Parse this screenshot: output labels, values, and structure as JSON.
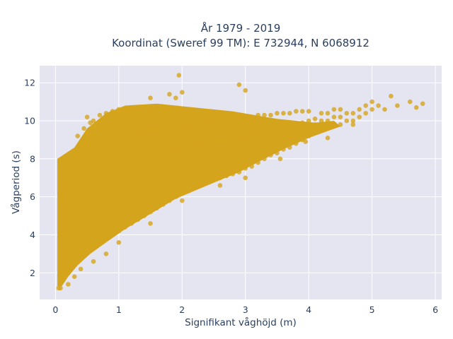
{
  "chart_data": {
    "type": "scatter",
    "title_line1": "År 1979 - 2019",
    "title_line2": "Koordinat (Sweref 99 TM): E 732944, N 6068912",
    "xlabel": "Signifikant våghöjd (m)",
    "ylabel": "Vågperiod (s)",
    "xlim": [
      -0.25,
      6.1
    ],
    "ylim": [
      0.6,
      12.9
    ],
    "x_ticks": [
      0,
      1,
      2,
      3,
      4,
      5,
      6
    ],
    "y_ticks": [
      2,
      4,
      6,
      8,
      10,
      12
    ],
    "grid": true,
    "legend": "none",
    "colors": {
      "marker": "#D4A41C",
      "plot_bg": "#E5E5F2",
      "grid": "#ffffff"
    },
    "series": [
      {
        "points": [
          [
            0.1,
            1.9
          ],
          [
            0.1,
            2.4
          ],
          [
            0.1,
            3.1
          ],
          [
            0.1,
            4.0
          ],
          [
            0.1,
            5.1
          ],
          [
            0.1,
            6.2
          ],
          [
            0.08,
            1.2
          ],
          [
            0.12,
            1.6
          ],
          [
            0.15,
            2.0
          ],
          [
            0.15,
            3.0
          ],
          [
            0.15,
            4.2
          ],
          [
            0.15,
            5.5
          ],
          [
            0.15,
            6.6
          ],
          [
            0.2,
            2.2
          ],
          [
            0.2,
            3.4
          ],
          [
            0.2,
            4.6
          ],
          [
            0.2,
            5.8
          ],
          [
            0.2,
            7.0
          ],
          [
            0.25,
            2.4
          ],
          [
            0.25,
            3.6
          ],
          [
            0.25,
            5.0
          ],
          [
            0.25,
            6.4
          ],
          [
            0.25,
            7.4
          ],
          [
            0.3,
            2.6
          ],
          [
            0.3,
            3.8
          ],
          [
            0.3,
            5.2
          ],
          [
            0.3,
            6.6
          ],
          [
            0.3,
            7.8
          ],
          [
            0.35,
            2.8
          ],
          [
            0.35,
            4.0
          ],
          [
            0.35,
            5.6
          ],
          [
            0.35,
            7.0
          ],
          [
            0.35,
            8.2
          ],
          [
            0.4,
            3.0
          ],
          [
            0.4,
            4.4
          ],
          [
            0.4,
            6.0
          ],
          [
            0.4,
            7.4
          ],
          [
            0.4,
            8.6
          ],
          [
            0.5,
            3.2
          ],
          [
            0.5,
            4.6
          ],
          [
            0.5,
            6.2
          ],
          [
            0.5,
            7.6
          ],
          [
            0.5,
            8.8
          ],
          [
            0.5,
            9.4
          ],
          [
            0.6,
            3.4
          ],
          [
            0.6,
            5.0
          ],
          [
            0.6,
            6.6
          ],
          [
            0.6,
            8.0
          ],
          [
            0.6,
            9.2
          ],
          [
            0.6,
            10.0
          ],
          [
            0.7,
            3.6
          ],
          [
            0.7,
            5.2
          ],
          [
            0.7,
            6.8
          ],
          [
            0.7,
            8.2
          ],
          [
            0.7,
            9.4
          ],
          [
            0.7,
            10.3
          ],
          [
            0.8,
            3.8
          ],
          [
            0.8,
            5.4
          ],
          [
            0.8,
            7.0
          ],
          [
            0.8,
            8.4
          ],
          [
            0.8,
            9.6
          ],
          [
            0.8,
            10.4
          ],
          [
            0.9,
            4.0
          ],
          [
            0.9,
            5.6
          ],
          [
            0.9,
            7.2
          ],
          [
            0.9,
            8.6
          ],
          [
            0.9,
            9.8
          ],
          [
            0.9,
            10.5
          ],
          [
            1.0,
            4.2
          ],
          [
            1.0,
            5.8
          ],
          [
            1.0,
            7.4
          ],
          [
            1.0,
            8.8
          ],
          [
            1.0,
            9.9
          ],
          [
            1.0,
            10.6
          ],
          [
            1.1,
            4.4
          ],
          [
            1.1,
            6.0
          ],
          [
            1.1,
            7.6
          ],
          [
            1.1,
            9.0
          ],
          [
            1.1,
            10.0
          ],
          [
            1.1,
            10.5
          ],
          [
            1.2,
            4.6
          ],
          [
            1.2,
            6.2
          ],
          [
            1.2,
            7.8
          ],
          [
            1.2,
            9.2
          ],
          [
            1.2,
            10.1
          ],
          [
            1.2,
            10.7
          ],
          [
            1.3,
            4.8
          ],
          [
            1.3,
            6.4
          ],
          [
            1.3,
            8.0
          ],
          [
            1.3,
            9.3
          ],
          [
            1.3,
            10.2
          ],
          [
            1.4,
            5.0
          ],
          [
            1.4,
            6.6
          ],
          [
            1.4,
            8.1
          ],
          [
            1.4,
            9.4
          ],
          [
            1.4,
            10.3
          ],
          [
            1.5,
            5.2
          ],
          [
            1.5,
            6.8
          ],
          [
            1.5,
            8.2
          ],
          [
            1.5,
            9.5
          ],
          [
            1.5,
            10.4
          ],
          [
            1.6,
            5.4
          ],
          [
            1.6,
            7.0
          ],
          [
            1.6,
            8.3
          ],
          [
            1.6,
            9.6
          ],
          [
            1.6,
            10.5
          ],
          [
            1.7,
            5.6
          ],
          [
            1.7,
            7.1
          ],
          [
            1.7,
            8.4
          ],
          [
            1.7,
            9.6
          ],
          [
            1.7,
            10.5
          ],
          [
            1.8,
            5.8
          ],
          [
            1.8,
            7.2
          ],
          [
            1.8,
            8.5
          ],
          [
            1.8,
            9.7
          ],
          [
            1.8,
            10.6
          ],
          [
            1.9,
            6.0
          ],
          [
            1.9,
            7.3
          ],
          [
            1.9,
            8.6
          ],
          [
            1.9,
            9.8
          ],
          [
            2.0,
            6.2
          ],
          [
            2.0,
            7.4
          ],
          [
            2.0,
            8.6
          ],
          [
            2.0,
            9.8
          ],
          [
            2.0,
            10.6
          ],
          [
            2.1,
            6.3
          ],
          [
            2.1,
            7.5
          ],
          [
            2.1,
            8.7
          ],
          [
            2.1,
            9.8
          ],
          [
            2.2,
            6.5
          ],
          [
            2.2,
            7.6
          ],
          [
            2.2,
            8.7
          ],
          [
            2.2,
            9.8
          ],
          [
            2.3,
            6.6
          ],
          [
            2.3,
            7.7
          ],
          [
            2.3,
            8.8
          ],
          [
            2.3,
            9.9
          ],
          [
            2.4,
            6.8
          ],
          [
            2.4,
            7.8
          ],
          [
            2.4,
            8.8
          ],
          [
            2.4,
            9.9
          ],
          [
            2.5,
            6.9
          ],
          [
            2.5,
            7.9
          ],
          [
            2.5,
            8.9
          ],
          [
            2.5,
            9.9
          ],
          [
            2.6,
            7.0
          ],
          [
            2.6,
            8.0
          ],
          [
            2.6,
            9.0
          ],
          [
            2.6,
            10.0
          ],
          [
            2.7,
            7.1
          ],
          [
            2.7,
            8.1
          ],
          [
            2.7,
            9.0
          ],
          [
            2.7,
            10.0
          ],
          [
            2.8,
            7.2
          ],
          [
            2.8,
            8.2
          ],
          [
            2.8,
            9.1
          ],
          [
            2.8,
            10.1
          ],
          [
            2.9,
            7.3
          ],
          [
            2.9,
            8.2
          ],
          [
            2.9,
            9.1
          ],
          [
            2.9,
            10.1
          ],
          [
            3.0,
            7.5
          ],
          [
            3.0,
            8.3
          ],
          [
            3.0,
            9.2
          ],
          [
            3.0,
            10.2
          ],
          [
            3.1,
            7.6
          ],
          [
            3.1,
            8.4
          ],
          [
            3.1,
            9.3
          ],
          [
            3.1,
            10.2
          ],
          [
            3.2,
            7.8
          ],
          [
            3.2,
            8.5
          ],
          [
            3.2,
            9.3
          ],
          [
            3.2,
            10.3
          ],
          [
            3.3,
            8.0
          ],
          [
            3.3,
            8.6
          ],
          [
            3.3,
            9.4
          ],
          [
            3.3,
            10.3
          ],
          [
            3.4,
            8.2
          ],
          [
            3.4,
            8.7
          ],
          [
            3.4,
            9.4
          ],
          [
            3.4,
            10.3
          ],
          [
            3.5,
            8.3
          ],
          [
            3.5,
            8.8
          ],
          [
            3.5,
            9.5
          ],
          [
            3.5,
            10.4
          ],
          [
            3.6,
            8.5
          ],
          [
            3.6,
            9.0
          ],
          [
            3.6,
            9.6
          ],
          [
            3.6,
            10.4
          ],
          [
            3.7,
            8.6
          ],
          [
            3.7,
            9.1
          ],
          [
            3.7,
            9.7
          ],
          [
            3.7,
            10.4
          ],
          [
            3.8,
            8.8
          ],
          [
            3.8,
            9.2
          ],
          [
            3.8,
            9.8
          ],
          [
            3.8,
            10.5
          ],
          [
            3.9,
            9.0
          ],
          [
            3.9,
            9.4
          ],
          [
            3.9,
            9.9
          ],
          [
            3.9,
            10.5
          ],
          [
            4.0,
            9.2
          ],
          [
            4.0,
            9.6
          ],
          [
            4.0,
            10.0
          ],
          [
            4.0,
            10.5
          ],
          [
            4.1,
            9.4
          ],
          [
            4.1,
            9.8
          ],
          [
            4.1,
            10.1
          ],
          [
            4.2,
            9.6
          ],
          [
            4.2,
            10.0
          ],
          [
            4.2,
            10.4
          ],
          [
            4.3,
            9.6
          ],
          [
            4.3,
            10.0
          ],
          [
            4.3,
            10.4
          ],
          [
            4.4,
            9.8
          ],
          [
            4.4,
            10.2
          ],
          [
            4.4,
            10.6
          ],
          [
            4.5,
            9.8
          ],
          [
            4.5,
            10.2
          ],
          [
            4.5,
            10.6
          ],
          [
            4.6,
            10.0
          ],
          [
            4.6,
            10.4
          ],
          [
            4.7,
            10.0
          ],
          [
            4.7,
            10.4
          ],
          [
            4.8,
            10.2
          ],
          [
            4.8,
            10.6
          ],
          [
            4.9,
            10.4
          ],
          [
            4.9,
            10.8
          ],
          [
            5.0,
            10.6
          ],
          [
            5.0,
            11.0
          ],
          [
            5.1,
            10.8
          ],
          [
            5.2,
            10.6
          ],
          [
            5.3,
            11.3
          ],
          [
            5.4,
            10.8
          ],
          [
            5.6,
            11.0
          ],
          [
            5.7,
            10.7
          ],
          [
            5.8,
            10.9
          ],
          [
            1.95,
            12.4
          ],
          [
            1.8,
            11.4
          ],
          [
            1.9,
            11.2
          ],
          [
            3.0,
            11.6
          ],
          [
            2.9,
            11.9
          ],
          [
            1.5,
            11.2
          ],
          [
            2.0,
            11.5
          ],
          [
            4.7,
            9.8
          ],
          [
            4.3,
            9.1
          ],
          [
            4.05,
            9.4
          ],
          [
            3.95,
            8.9
          ],
          [
            3.55,
            8.0
          ],
          [
            3.0,
            7.0
          ],
          [
            2.6,
            6.6
          ],
          [
            2.0,
            5.8
          ],
          [
            1.5,
            4.6
          ],
          [
            1.0,
            3.6
          ],
          [
            0.8,
            3.0
          ],
          [
            0.6,
            2.6
          ],
          [
            0.4,
            2.2
          ],
          [
            0.3,
            1.8
          ],
          [
            0.2,
            1.4
          ],
          [
            0.05,
            1.2
          ],
          [
            0.45,
            8.8
          ],
          [
            0.35,
            9.2
          ],
          [
            0.55,
            9.9
          ],
          [
            0.25,
            7.9
          ],
          [
            0.5,
            10.2
          ],
          [
            0.45,
            9.6
          ]
        ]
      }
    ]
  }
}
